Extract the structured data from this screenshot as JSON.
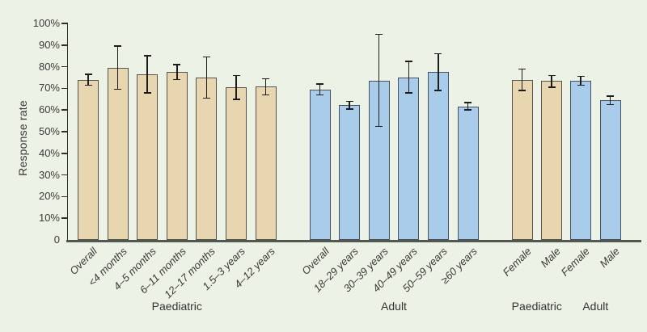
{
  "chart_data": {
    "type": "bar",
    "title": "",
    "ylabel": "Response rate",
    "legend": "none",
    "grid": false,
    "error_bars": true,
    "y_axis": {
      "min": 0,
      "max": 100,
      "tick_step": 10,
      "tick_labels": [
        "0",
        "10%",
        "20%",
        "30%",
        "40%",
        "50%",
        "60%",
        "70%",
        "80%",
        "90%",
        "100%"
      ]
    },
    "colors": {
      "background": "#edf2e6",
      "paediatric_fill": "#e7d6b0",
      "paediatric_border": "#55534a",
      "adult_fill": "#a8cce9",
      "adult_border": "#46535e",
      "axis": "#2f2f2f",
      "error_bar": "#1c1c1c"
    },
    "groups": [
      {
        "label": "Paediatric",
        "series": "paediatric",
        "bars": [
          {
            "category": "Overall",
            "value": 74,
            "ci_low": 71.5,
            "ci_high": 76.5
          },
          {
            "category": "<4 months",
            "value": 79.5,
            "ci_low": 69.5,
            "ci_high": 89.5
          },
          {
            "category": "4–5 months",
            "value": 76.5,
            "ci_low": 68,
            "ci_high": 85
          },
          {
            "category": "6–11 months",
            "value": 77.5,
            "ci_low": 74,
            "ci_high": 81
          },
          {
            "category": "12–17 months",
            "value": 75,
            "ci_low": 65.5,
            "ci_high": 84.5
          },
          {
            "category": "1.5–3 years",
            "value": 70.5,
            "ci_low": 65,
            "ci_high": 76
          },
          {
            "category": "4–12 years",
            "value": 71,
            "ci_low": 67,
            "ci_high": 74.5
          }
        ]
      },
      {
        "label": "Adult",
        "series": "adult",
        "bars": [
          {
            "category": "Overall",
            "value": 69.5,
            "ci_low": 67,
            "ci_high": 72
          },
          {
            "category": "18–29 years",
            "value": 62.5,
            "ci_low": 60.5,
            "ci_high": 64
          },
          {
            "category": "30–39 years",
            "value": 73.5,
            "ci_low": 52.5,
            "ci_high": 95
          },
          {
            "category": "40–49 years",
            "value": 75,
            "ci_low": 68,
            "ci_high": 82.5
          },
          {
            "category": "50–59 years",
            "value": 77.5,
            "ci_low": 69,
            "ci_high": 86
          },
          {
            "category": "≥60 years",
            "value": 61.5,
            "ci_low": 60,
            "ci_high": 63.5
          }
        ]
      },
      {
        "label": "Paediatric",
        "series": "paediatric",
        "bars": [
          {
            "category": "Female",
            "value": 74,
            "ci_low": 69,
            "ci_high": 79
          },
          {
            "category": "Male",
            "value": 73.5,
            "ci_low": 70.5,
            "ci_high": 76
          }
        ]
      },
      {
        "label": "Adult",
        "series": "adult",
        "bars": [
          {
            "category": "Female",
            "value": 73.5,
            "ci_low": 71.5,
            "ci_high": 75.5
          },
          {
            "category": "Male",
            "value": 64.5,
            "ci_low": 62.5,
            "ci_high": 66.5
          }
        ]
      }
    ]
  }
}
